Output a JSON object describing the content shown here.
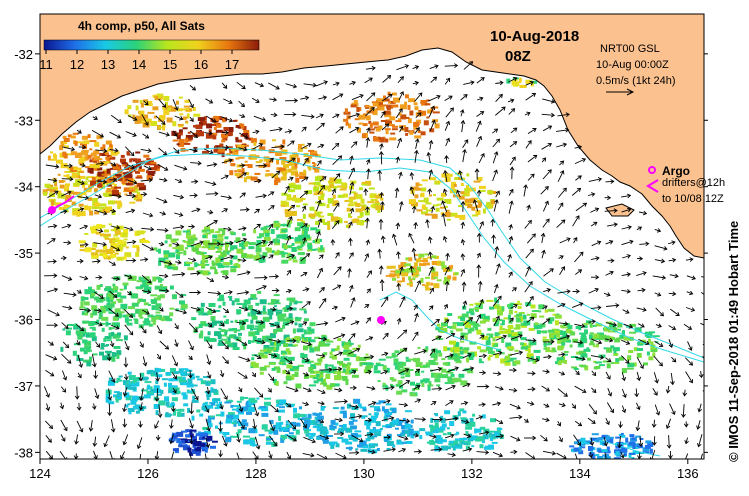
{
  "colorbar": {
    "title": "4h comp, p50, All Sats",
    "labels": [
      "11",
      "12",
      "13",
      "14",
      "15",
      "16",
      "17"
    ],
    "stops": [
      "#0a1590",
      "#1e6fe8",
      "#19c8e6",
      "#2ad27a",
      "#b8e61e",
      "#f0d21e",
      "#e8780f",
      "#8a1c0a"
    ]
  },
  "header": {
    "date": "10-Aug-2018",
    "time": "08Z"
  },
  "info": {
    "line1": "NRT00 GSL",
    "line2": "10-Aug 00:00Z",
    "line3": "0.5m/s (1kt 24h)"
  },
  "argo": {
    "label": "Argo",
    "line1": "drifters@12h",
    "line2": "to 10/08 12Z"
  },
  "axes": {
    "x_ticks": [
      "124",
      "126",
      "128",
      "130",
      "132",
      "134",
      "136"
    ],
    "x_values": [
      124,
      126,
      128,
      130,
      132,
      134,
      136
    ],
    "y_ticks": [
      "-32",
      "-33",
      "-34",
      "-35",
      "-36",
      "-37",
      "-38"
    ],
    "y_values": [
      -32,
      -33,
      -34,
      -35,
      -36,
      -37,
      -38
    ],
    "lon_range": [
      124,
      136.3
    ],
    "lat_range": [
      -31.4,
      -38.1
    ]
  },
  "credit": "© IMOS 11-Sep-2018 01:49 Hobart Time",
  "colors": {
    "land": "#fbc18f",
    "coast": "#000000",
    "contour": "#30d8e8",
    "argo": "#ff00ff",
    "arrow": "#000000"
  }
}
